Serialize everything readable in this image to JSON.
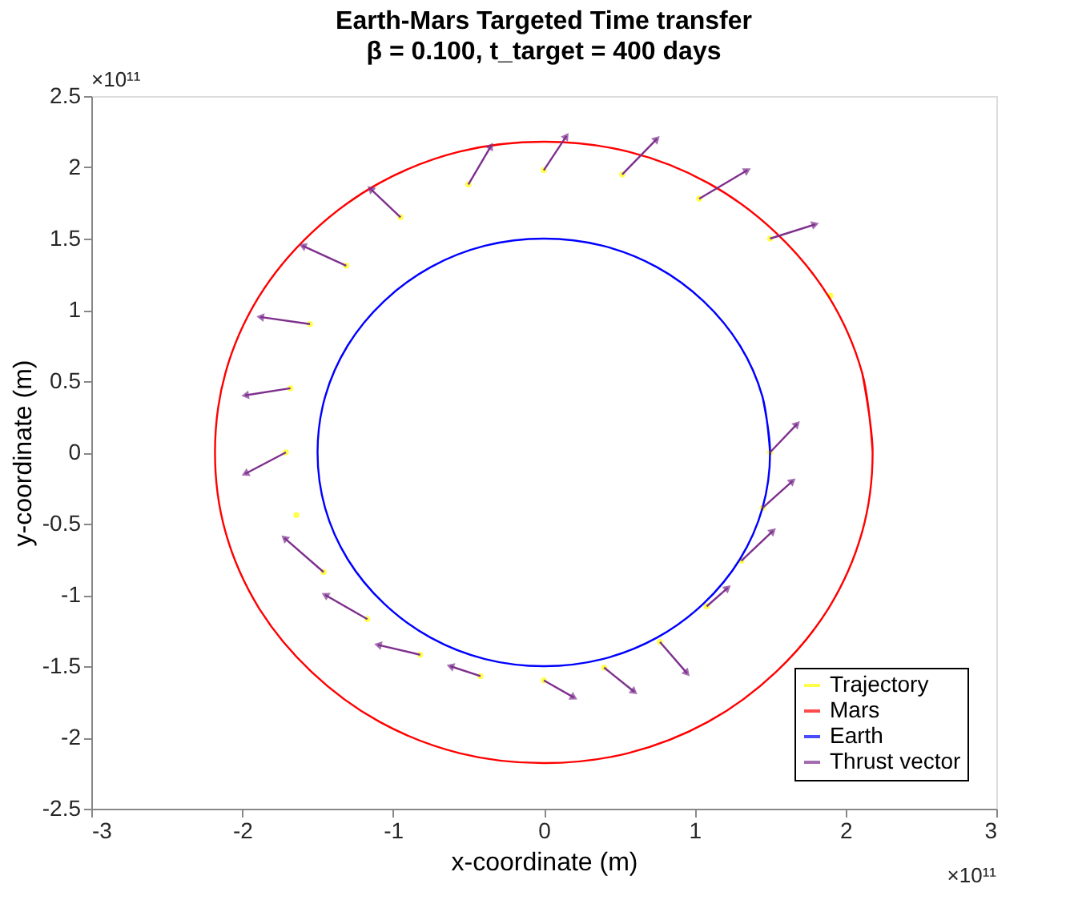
{
  "chart_data": {
    "type": "line",
    "title": "Earth-Mars Targeted Time transfer",
    "subtitle": "β = 0.100, t_target = 400 days",
    "xlabel": "x-coordinate (m)",
    "ylabel": "y-coordinate (m)",
    "xlim": [
      -3,
      3
    ],
    "ylim": [
      -2.5,
      2.5
    ],
    "xticks": [
      -3,
      -2,
      -1,
      0,
      1,
      2,
      3
    ],
    "yticks": [
      -2.5,
      -2,
      -1.5,
      -1,
      -0.5,
      0,
      0.5,
      1,
      1.5,
      2,
      2.5
    ],
    "grid": false,
    "legend": "bottom right",
    "annotations": [
      "×10¹¹",
      "×10¹¹"
    ],
    "series": [
      {
        "name": "Trajectory",
        "type": "scatter",
        "marker": "circle",
        "color": "#ffff00",
        "x": [
          1.5,
          1.45,
          1.31,
          1.08,
          0.77,
          0.4,
          0,
          -0.42,
          -0.82,
          -1.17,
          -1.46,
          -1.64,
          -1.71,
          -1.68,
          -1.55,
          -1.31,
          -0.95,
          -0.5,
          0,
          0.52,
          1.03,
          1.5,
          1.9
        ],
        "values": [
          0,
          -0.39,
          -0.76,
          -1.08,
          -1.33,
          -1.51,
          -1.6,
          -1.57,
          -1.42,
          -1.17,
          -0.84,
          -0.44,
          0,
          0.45,
          0.9,
          1.31,
          1.65,
          1.88,
          1.98,
          1.95,
          1.78,
          1.5,
          1.1
        ]
      },
      {
        "name": "Mars",
        "color": "#ff0000",
        "x": [
          2.18,
          2.11,
          1.89,
          1.54,
          1.09,
          0.56,
          0,
          -0.56,
          -1.09,
          -1.54,
          -1.89,
          -2.11,
          -2.18,
          -2.11,
          -1.89,
          -1.54,
          -1.09,
          -0.56,
          0,
          0.56,
          1.09,
          1.54,
          1.89,
          2.11,
          2.18,
          2.11
        ],
        "values": [
          0,
          0.56,
          1.09,
          1.54,
          1.89,
          2.11,
          2.18,
          2.11,
          1.89,
          1.54,
          1.09,
          0.56,
          0,
          -0.56,
          -1.09,
          -1.54,
          -1.89,
          -2.11,
          -2.18,
          -2.11,
          -1.89,
          -1.54,
          -1.09,
          -0.56,
          0,
          0.56
        ]
      },
      {
        "name": "Earth",
        "color": "#0000ff",
        "x": [
          1.5,
          1.45,
          1.3,
          1.06,
          0.75,
          0.39,
          0,
          -0.39,
          -0.75,
          -1.06,
          -1.3,
          -1.45,
          -1.5,
          -1.45,
          -1.3,
          -1.06,
          -0.75,
          -0.39,
          0,
          0.39,
          0.75,
          1.06,
          1.3,
          1.45,
          1.5,
          1.45
        ],
        "values": [
          0,
          0.39,
          0.75,
          1.06,
          1.3,
          1.45,
          1.5,
          1.45,
          1.3,
          1.06,
          0.75,
          0.39,
          0,
          -0.39,
          -0.75,
          -1.06,
          -1.3,
          -1.45,
          -1.5,
          -1.45,
          -1.3,
          -1.06,
          -0.75,
          -0.39,
          0,
          0.39
        ]
      },
      {
        "name": "Thrust vector",
        "marker": "triangle",
        "color": "#7e2f8e",
        "x": [
          1.45,
          1.65,
          null,
          1.31,
          1.52,
          null,
          1.5,
          1.68,
          null,
          1.08,
          1.22,
          null,
          0.77,
          0.95,
          null,
          0.4,
          0.6,
          null,
          0,
          0.2,
          null,
          -0.42,
          -0.62,
          null,
          -0.82,
          -1.1,
          null,
          -1.17,
          -1.45,
          null,
          -1.46,
          -1.72,
          null,
          -1.71,
          -1.98,
          null,
          -1.68,
          -1.98,
          null,
          -1.55,
          -1.88,
          null,
          -1.31,
          -1.6,
          null,
          -0.95,
          -1.15,
          null,
          -0.5,
          -0.35,
          null,
          0,
          0.15,
          null,
          0.52,
          0.75,
          null,
          1.03,
          1.35,
          null,
          1.5,
          1.8
        ],
        "values": [
          -0.39,
          -0.2,
          null,
          -0.76,
          -0.55,
          null,
          0,
          0.2,
          null,
          -1.08,
          -0.95,
          null,
          -1.33,
          -1.55,
          null,
          -1.51,
          -1.68,
          null,
          -1.6,
          -1.72,
          null,
          -1.57,
          -1.5,
          null,
          -1.42,
          -1.35,
          null,
          -1.17,
          -1.0,
          null,
          -0.84,
          -0.6,
          null,
          0,
          -0.15,
          null,
          0.45,
          0.4,
          null,
          0.9,
          0.95,
          null,
          1.31,
          1.45,
          null,
          1.65,
          1.85,
          null,
          1.88,
          2.15,
          null,
          1.98,
          2.22,
          null,
          1.95,
          2.2,
          null,
          1.78,
          1.98,
          null,
          1.5,
          1.6
        ]
      }
    ]
  }
}
